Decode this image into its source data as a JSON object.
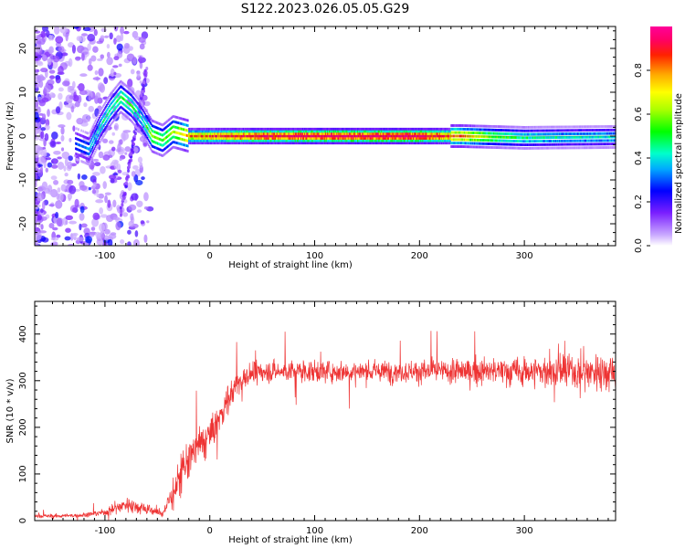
{
  "title": "S122.2023.026.05.05.G29",
  "chart_data": [
    {
      "type": "heatmap",
      "xlabel": "Height of straight line (km)",
      "ylabel": "Frequency (Hz)",
      "xlim": [
        -167,
        387
      ],
      "ylim": [
        -25,
        25
      ],
      "xticks": [
        -100,
        0,
        100,
        200,
        300
      ],
      "yticks": [
        -20,
        -10,
        0,
        10,
        20
      ],
      "tick_labels_x": [
        "-100",
        "0",
        "100",
        "200",
        "300"
      ],
      "tick_labels_y": [
        "-20",
        "-10",
        "0",
        "10",
        "20"
      ],
      "colorbar": {
        "label": "Normalized spectral amplitude",
        "range": [
          0,
          1
        ],
        "ticks": [
          0.0,
          0.2,
          0.4,
          0.6,
          0.8
        ],
        "tick_labels": [
          "0.0",
          "0.2",
          "0.4",
          "0.6",
          "0.8"
        ]
      },
      "ridge": [
        {
          "x": -125,
          "y": -2,
          "v": 0.3
        },
        {
          "x": -115,
          "y": -3,
          "v": 0.35
        },
        {
          "x": -105,
          "y": 2,
          "v": 0.4
        },
        {
          "x": -95,
          "y": 6,
          "v": 0.45
        },
        {
          "x": -85,
          "y": 9,
          "v": 0.5
        },
        {
          "x": -75,
          "y": 7,
          "v": 0.5
        },
        {
          "x": -65,
          "y": 4,
          "v": 0.4
        },
        {
          "x": -55,
          "y": 0,
          "v": 0.6
        },
        {
          "x": -45,
          "y": -1,
          "v": 0.55
        },
        {
          "x": -35,
          "y": 1,
          "v": 0.6
        },
        {
          "x": -20,
          "y": 0,
          "v": 0.8
        },
        {
          "x": 0,
          "y": 0,
          "v": 0.85
        },
        {
          "x": 50,
          "y": 0,
          "v": 0.95
        },
        {
          "x": 100,
          "y": 0,
          "v": 1.0
        },
        {
          "x": 150,
          "y": 0,
          "v": 1.0
        },
        {
          "x": 200,
          "y": 0,
          "v": 1.0
        },
        {
          "x": 240,
          "y": 0,
          "v": 0.8
        },
        {
          "x": 270,
          "y": -0.2,
          "v": 0.55
        },
        {
          "x": 300,
          "y": -0.4,
          "v": 0.45
        },
        {
          "x": 340,
          "y": -0.3,
          "v": 0.4
        },
        {
          "x": 387,
          "y": -0.2,
          "v": 0.4
        }
      ]
    },
    {
      "type": "line",
      "xlabel": "Height of straight line (km)",
      "ylabel": "SNR (10 * v/v)",
      "xlim": [
        -167,
        387
      ],
      "ylim": [
        0,
        470
      ],
      "xticks": [
        -100,
        0,
        100,
        200,
        300
      ],
      "yticks": [
        0,
        100,
        200,
        300,
        400
      ],
      "tick_labels_x": [
        "-100",
        "0",
        "100",
        "200",
        "300"
      ],
      "tick_labels_y": [
        "0",
        "100",
        "200",
        "300",
        "400"
      ],
      "color": "#ee3333",
      "series": [
        {
          "x": [
            -167,
            -140,
            -120,
            -100,
            -80,
            -60,
            -45,
            -35,
            -25,
            -15,
            -5,
            5,
            15,
            25,
            35,
            50,
            75,
            100,
            150,
            200,
            250,
            300,
            350,
            387
          ],
          "mean": [
            10,
            10,
            12,
            18,
            35,
            25,
            15,
            60,
            110,
            150,
            170,
            200,
            250,
            290,
            310,
            320,
            320,
            320,
            320,
            320,
            320,
            320,
            320,
            320
          ],
          "spread": [
            6,
            6,
            7,
            12,
            25,
            20,
            15,
            50,
            80,
            70,
            60,
            55,
            50,
            45,
            40,
            35,
            35,
            35,
            35,
            38,
            42,
            50,
            60,
            65
          ]
        }
      ]
    }
  ]
}
